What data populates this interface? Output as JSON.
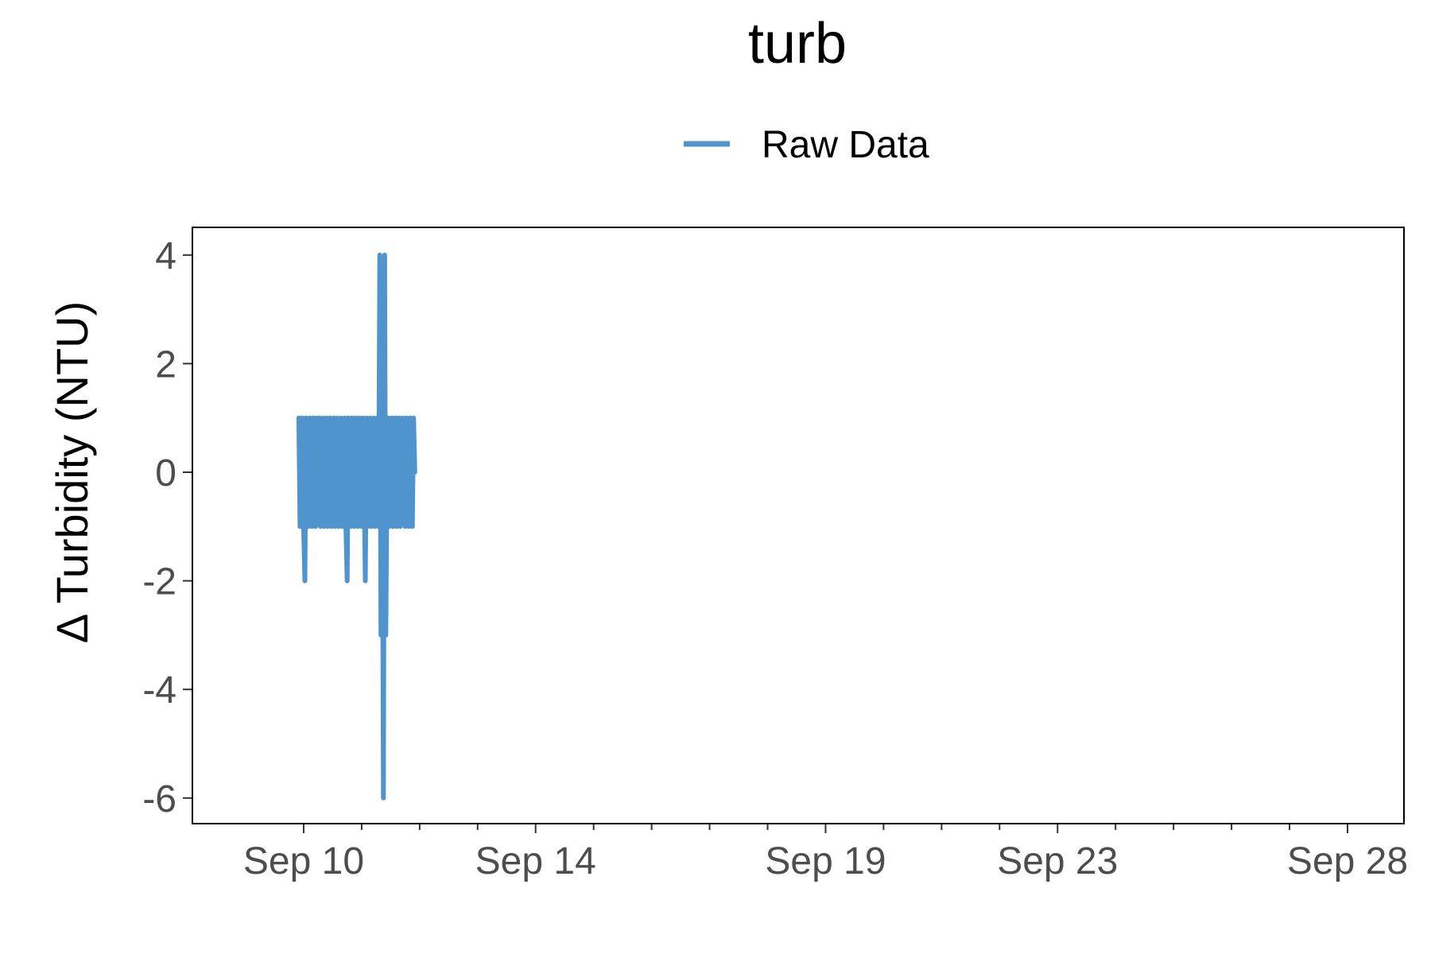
{
  "chart_data": {
    "type": "line",
    "title": "turb",
    "xlabel": "",
    "ylabel": "Δ Turbidity (NTU)",
    "x_tick_labels": [
      "Sep 10",
      "Sep 14",
      "Sep 19",
      "Sep 23",
      "Sep 28"
    ],
    "x_ticks_dates": [
      "2023-09-10",
      "2023-09-14",
      "2023-09-19",
      "2023-09-23",
      "2023-09-28"
    ],
    "x_minor_ticks_dates": [
      "2023-09-11",
      "2023-09-12",
      "2023-09-13",
      "2023-09-15",
      "2023-09-16",
      "2023-09-17",
      "2023-09-18",
      "2023-09-20",
      "2023-09-21",
      "2023-09-22",
      "2023-09-24",
      "2023-09-25",
      "2023-09-26",
      "2023-09-27"
    ],
    "xlim": [
      "2023-09-09",
      "2023-09-28"
    ],
    "y_ticks": [
      4,
      2,
      0,
      -2,
      -4,
      -6
    ],
    "ylim": [
      -6.5,
      4.5
    ],
    "grid": false,
    "legend_position": "top",
    "series": [
      {
        "name": "Raw Data",
        "color": "#4f94cd",
        "x": [
          "2023-09-09T22:00",
          "2023-09-09T22:30",
          "2023-09-09T23:00",
          "2023-09-09T23:30",
          "2023-09-10T00:00",
          "2023-09-10T00:30",
          "2023-09-10T01:00",
          "2023-09-10T01:30",
          "2023-09-10T02:00",
          "2023-09-10T02:30",
          "2023-09-10T03:00",
          "2023-09-10T03:30",
          "2023-09-10T04:00",
          "2023-09-10T04:30",
          "2023-09-10T05:00",
          "2023-09-10T05:30",
          "2023-09-10T06:00",
          "2023-09-10T06:30",
          "2023-09-10T07:00",
          "2023-09-10T07:30",
          "2023-09-10T08:00",
          "2023-09-10T08:30",
          "2023-09-10T09:00",
          "2023-09-10T09:30",
          "2023-09-10T10:00",
          "2023-09-10T10:30",
          "2023-09-10T11:00",
          "2023-09-10T11:30",
          "2023-09-10T12:00",
          "2023-09-10T12:30",
          "2023-09-10T13:00",
          "2023-09-10T13:30",
          "2023-09-10T14:00",
          "2023-09-10T14:30",
          "2023-09-10T15:00",
          "2023-09-10T15:30",
          "2023-09-10T16:00",
          "2023-09-10T16:30",
          "2023-09-10T17:00",
          "2023-09-10T17:30",
          "2023-09-10T18:00",
          "2023-09-10T18:30",
          "2023-09-10T19:00",
          "2023-09-10T19:30",
          "2023-09-10T20:00",
          "2023-09-10T20:30",
          "2023-09-10T21:00",
          "2023-09-10T21:30",
          "2023-09-10T22:00",
          "2023-09-10T22:30",
          "2023-09-10T23:00",
          "2023-09-10T23:30",
          "2023-09-11T00:00",
          "2023-09-11T00:30",
          "2023-09-11T01:00",
          "2023-09-11T01:30",
          "2023-09-11T02:00",
          "2023-09-11T02:30",
          "2023-09-11T03:00",
          "2023-09-11T03:30",
          "2023-09-11T04:00",
          "2023-09-11T04:30",
          "2023-09-11T05:00",
          "2023-09-11T05:30",
          "2023-09-11T06:00",
          "2023-09-11T06:30",
          "2023-09-11T07:00",
          "2023-09-11T07:30",
          "2023-09-11T08:00",
          "2023-09-11T08:30",
          "2023-09-11T09:00",
          "2023-09-11T09:30",
          "2023-09-11T10:00",
          "2023-09-11T10:30",
          "2023-09-11T11:00",
          "2023-09-11T11:30",
          "2023-09-11T12:00",
          "2023-09-11T12:30",
          "2023-09-11T13:00",
          "2023-09-11T13:30",
          "2023-09-11T14:00",
          "2023-09-11T14:30",
          "2023-09-11T15:00",
          "2023-09-11T15:30",
          "2023-09-11T16:00",
          "2023-09-11T16:30",
          "2023-09-11T17:00",
          "2023-09-11T17:30",
          "2023-09-11T18:00",
          "2023-09-11T18:30",
          "2023-09-11T19:00",
          "2023-09-11T19:30",
          "2023-09-11T20:00",
          "2023-09-11T20:30",
          "2023-09-11T21:00",
          "2023-09-11T21:30",
          "2023-09-11T22:00"
        ],
        "values": [
          1,
          -1,
          0,
          1,
          -1,
          -2,
          1,
          0,
          -1,
          1,
          0,
          -1,
          1,
          0,
          -1,
          1,
          0,
          1,
          -1,
          0,
          1,
          -1,
          0,
          1,
          -1,
          0,
          1,
          -1,
          0,
          1,
          -1,
          0,
          1,
          -1,
          0,
          1,
          -1,
          0,
          1,
          -1,
          -2,
          1,
          0,
          -1,
          1,
          0,
          -1,
          1,
          0,
          -1,
          1,
          0,
          -1,
          1,
          0,
          -2,
          1,
          -1,
          0,
          1,
          -1,
          0,
          1,
          -1,
          0,
          1,
          -1,
          4,
          -3,
          1,
          -6,
          4,
          -3,
          0,
          1,
          -1,
          0,
          1,
          -1,
          0,
          1,
          -1,
          0,
          1,
          -1,
          0,
          1,
          0,
          -1,
          1,
          0,
          -1,
          1,
          0,
          -1,
          1,
          0
        ]
      }
    ]
  }
}
